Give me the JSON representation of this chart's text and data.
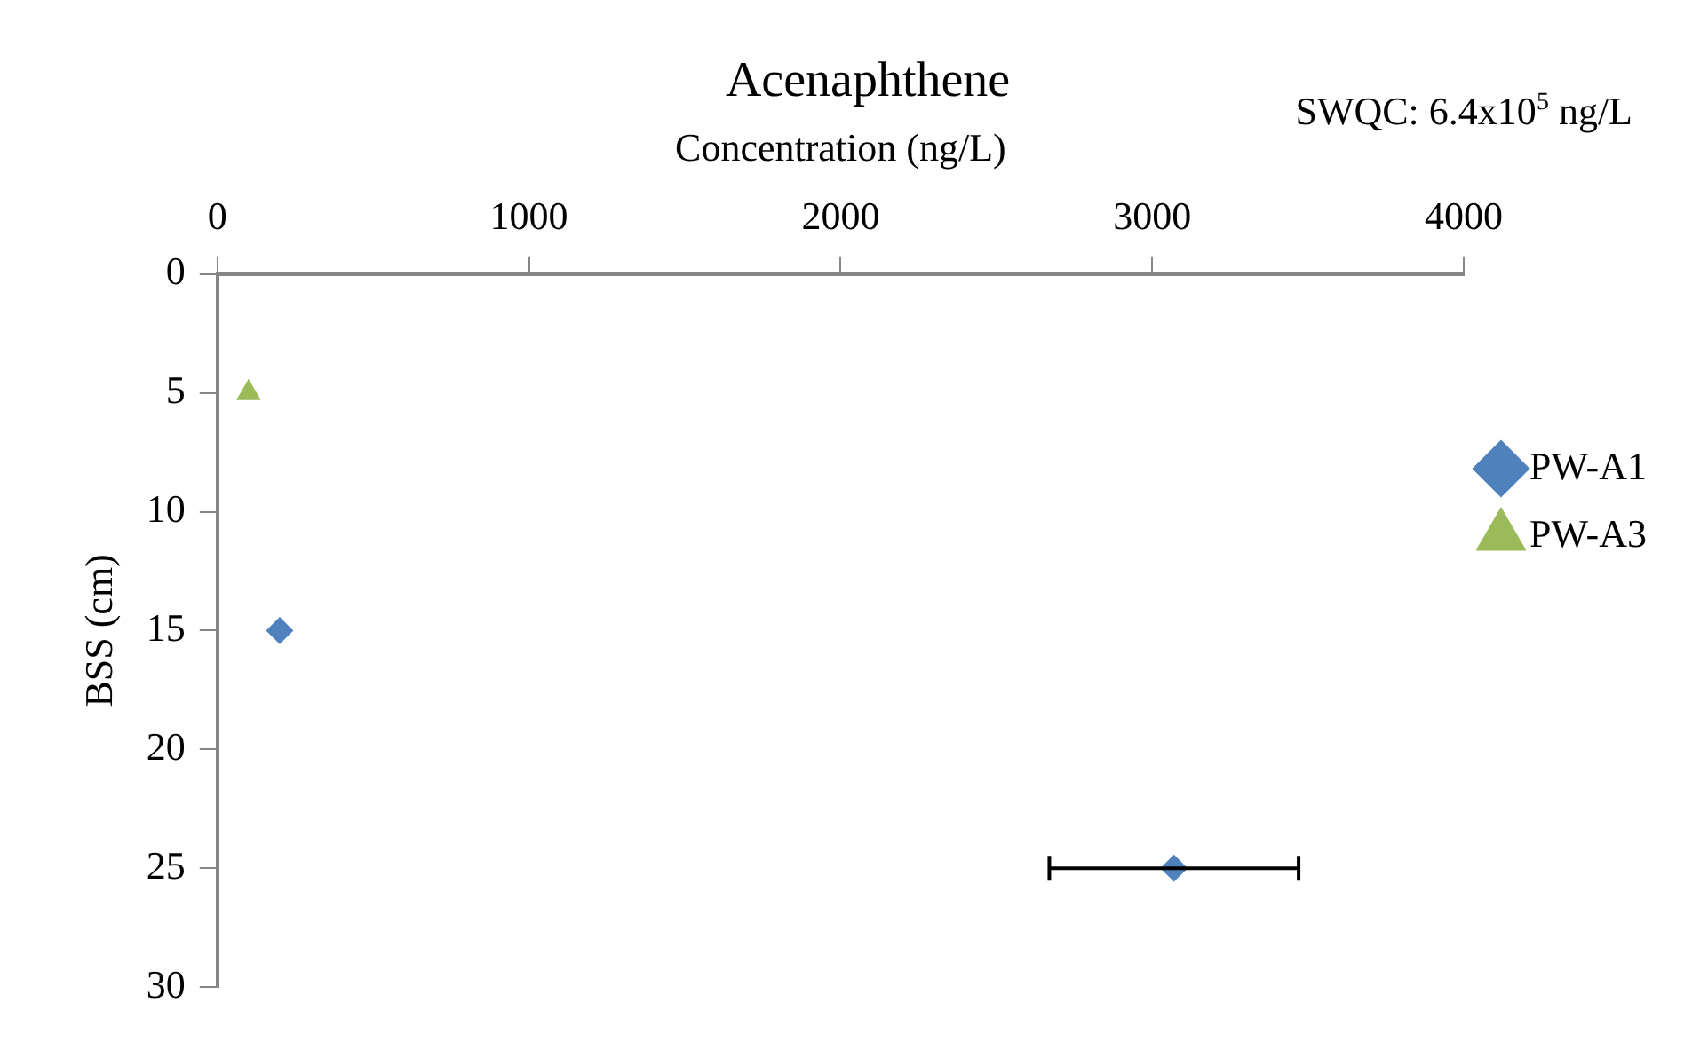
{
  "chart_data": {
    "type": "scatter",
    "title": "Acenaphthene",
    "xlabel": "Concentration (ng/L)",
    "ylabel": "BSS (cm)",
    "annotations": [
      "SWQC: 6.4x10$^{5}$ ng/L"
    ],
    "xlim": [
      0,
      4000
    ],
    "xticks": [
      0,
      1000,
      2000,
      3000,
      4000
    ],
    "ylim": [
      30,
      0
    ],
    "yticks": [
      0,
      5,
      10,
      15,
      20,
      25,
      30
    ],
    "grid": false,
    "legend": "right",
    "series": [
      {
        "name": "PW-A1",
        "color": "#4f81bd",
        "marker": "diamond",
        "x": [
          200,
          3070
        ],
        "values": [
          15,
          25
        ],
        "xerrors": [
          null,
          400
        ]
      },
      {
        "name": "PW-A3",
        "color": "#9bbb59",
        "marker": "triangle",
        "x": [
          100
        ],
        "values": [
          5
        ]
      }
    ]
  }
}
